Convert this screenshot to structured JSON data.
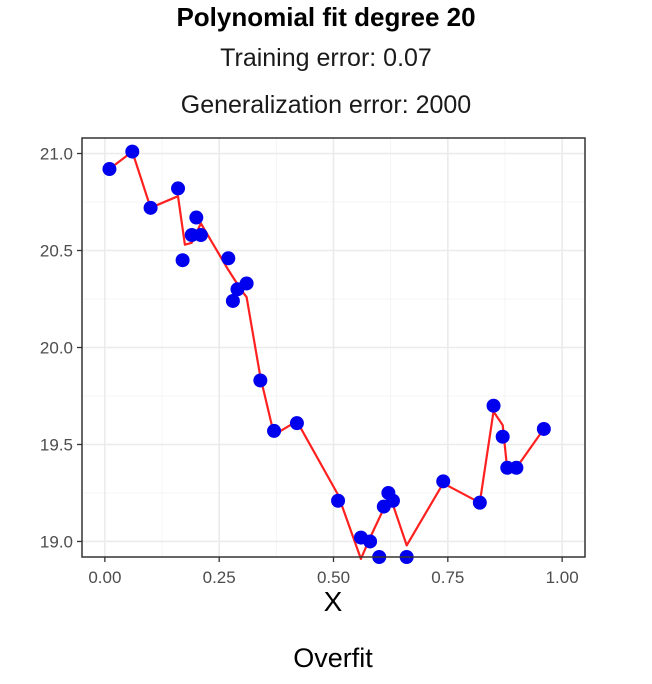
{
  "title": "Polynomial fit degree 20",
  "subtitle_training": "Training error: 0.07",
  "subtitle_generalization": "Generalization error: 2000",
  "caption": "Overfit",
  "colors": {
    "points": "#0000ee",
    "fit_line": "#ff2020",
    "grid_major": "#ebebeb",
    "grid_minor": "#f4f4f4",
    "panel_border": "#333333"
  },
  "chart_data": {
    "type": "scatter",
    "xlabel": "X",
    "ylabel": "",
    "xlim": [
      -0.05,
      1.05
    ],
    "ylim": [
      18.92,
      21.08
    ],
    "x_ticks": [
      0.0,
      0.25,
      0.5,
      0.75,
      1.0
    ],
    "x_tick_labels": [
      "0.00",
      "0.25",
      "0.50",
      "0.75",
      "1.00"
    ],
    "y_ticks": [
      19.0,
      19.5,
      20.0,
      20.5,
      21.0
    ],
    "y_tick_labels": [
      "19.0",
      "19.5",
      "20.0",
      "20.5",
      "21.0"
    ],
    "grid": true,
    "legend": "none",
    "points": [
      [
        0.01,
        20.92
      ],
      [
        0.06,
        21.01
      ],
      [
        0.1,
        20.72
      ],
      [
        0.16,
        20.82
      ],
      [
        0.17,
        20.45
      ],
      [
        0.19,
        20.58
      ],
      [
        0.2,
        20.67
      ],
      [
        0.21,
        20.58
      ],
      [
        0.27,
        20.46
      ],
      [
        0.28,
        20.24
      ],
      [
        0.29,
        20.3
      ],
      [
        0.31,
        20.33
      ],
      [
        0.34,
        19.83
      ],
      [
        0.37,
        19.57
      ],
      [
        0.42,
        19.61
      ],
      [
        0.51,
        19.21
      ],
      [
        0.56,
        19.02
      ],
      [
        0.58,
        19.0
      ],
      [
        0.6,
        18.92
      ],
      [
        0.61,
        19.18
      ],
      [
        0.62,
        19.25
      ],
      [
        0.63,
        19.21
      ],
      [
        0.66,
        18.92
      ],
      [
        0.74,
        19.31
      ],
      [
        0.82,
        19.2
      ],
      [
        0.85,
        19.7
      ],
      [
        0.87,
        19.54
      ],
      [
        0.88,
        19.38
      ],
      [
        0.9,
        19.38
      ],
      [
        0.96,
        19.58
      ]
    ],
    "fit_line": [
      [
        0.01,
        20.92
      ],
      [
        0.06,
        21.01
      ],
      [
        0.1,
        20.72
      ],
      [
        0.16,
        20.78
      ],
      [
        0.175,
        20.53
      ],
      [
        0.19,
        20.54
      ],
      [
        0.21,
        20.64
      ],
      [
        0.27,
        20.4
      ],
      [
        0.3,
        20.29
      ],
      [
        0.31,
        20.26
      ],
      [
        0.34,
        19.85
      ],
      [
        0.37,
        19.55
      ],
      [
        0.42,
        19.62
      ],
      [
        0.51,
        19.24
      ],
      [
        0.56,
        18.91
      ],
      [
        0.58,
        19.02
      ],
      [
        0.61,
        19.17
      ],
      [
        0.63,
        19.19
      ],
      [
        0.66,
        18.98
      ],
      [
        0.74,
        19.3
      ],
      [
        0.82,
        19.2
      ],
      [
        0.85,
        19.67
      ],
      [
        0.87,
        19.6
      ],
      [
        0.88,
        19.37
      ],
      [
        0.9,
        19.38
      ],
      [
        0.96,
        19.58
      ]
    ]
  }
}
